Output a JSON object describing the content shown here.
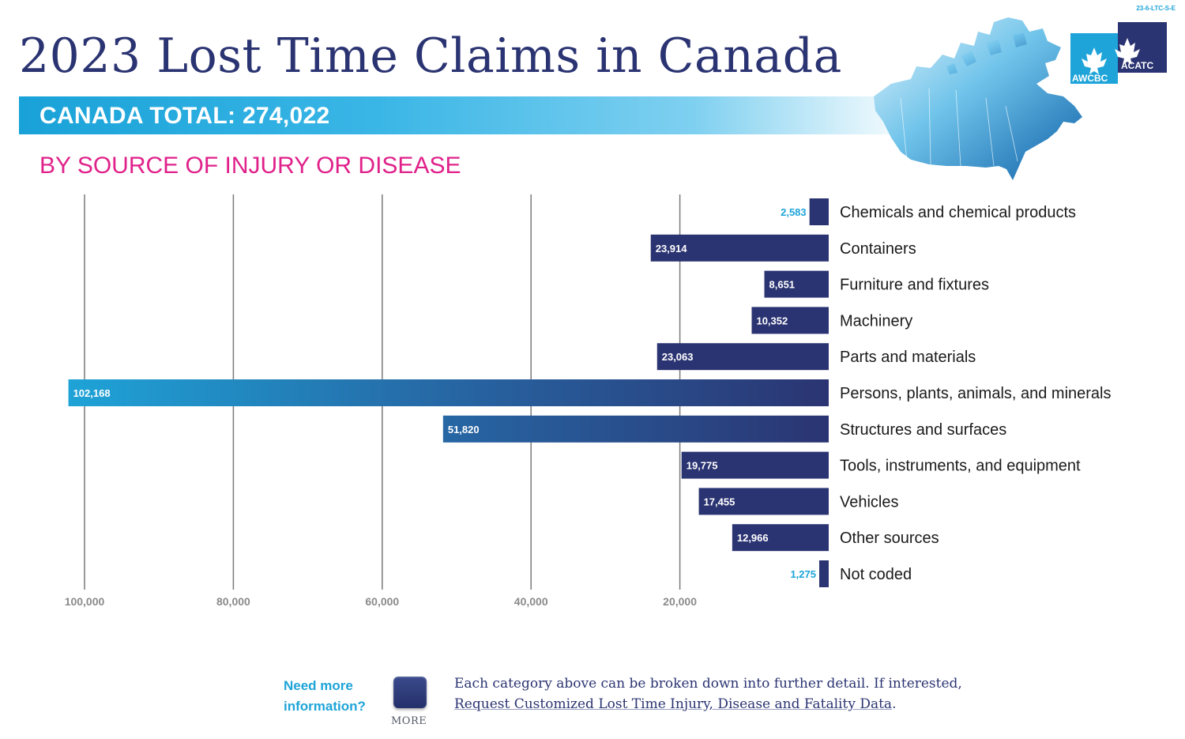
{
  "doc_code": "23-6-LTC-S-E",
  "title": "2023 Lost Time Claims in Canada",
  "total_banner": "CANADA TOTAL: 274,022",
  "subtitle": "BY SOURCE OF INJURY OR DISEASE",
  "logo": {
    "left_text": "AWCBC",
    "right_text": "ACATC"
  },
  "colors": {
    "title": "#2b3472",
    "bar_dark": "#2b3472",
    "bar_light": "#1ea4d8",
    "subtitle": "#e0218a",
    "banner": "#19a2d8"
  },
  "chart_data": {
    "type": "bar",
    "orientation": "horizontal",
    "direction": "right-to-left",
    "categories": [
      "Chemicals and chemical products",
      "Containers",
      "Furniture and fixtures",
      "Machinery",
      "Parts and materials",
      "Persons, plants, animals, and minerals",
      "Structures and surfaces",
      "Tools, instruments, and equipment",
      "Vehicles",
      "Other sources",
      "Not coded"
    ],
    "values": [
      2583,
      23914,
      8651,
      10352,
      23063,
      102168,
      51820,
      19775,
      17455,
      12966,
      1275
    ],
    "value_labels": [
      "2,583",
      "23,914",
      "8,651",
      "10,352",
      "23,063",
      "102,168",
      "51,820",
      "19,775",
      "17,455",
      "12,966",
      "1,275"
    ],
    "x_ticks": [
      100000,
      80000,
      60000,
      40000,
      20000
    ],
    "x_tick_labels": [
      "100,000",
      "80,000",
      "60,000",
      "40,000",
      "20,000"
    ],
    "xlim": [
      0,
      110000
    ],
    "grid": true,
    "legend": "none"
  },
  "footer": {
    "need_more": "Need more information?",
    "more_label": "MORE",
    "info_line1": "Each category above can be broken down into further detail. If interested,",
    "info_link": "Request Customized Lost Time Injury, Disease and Fatality Data",
    "info_period": "."
  }
}
